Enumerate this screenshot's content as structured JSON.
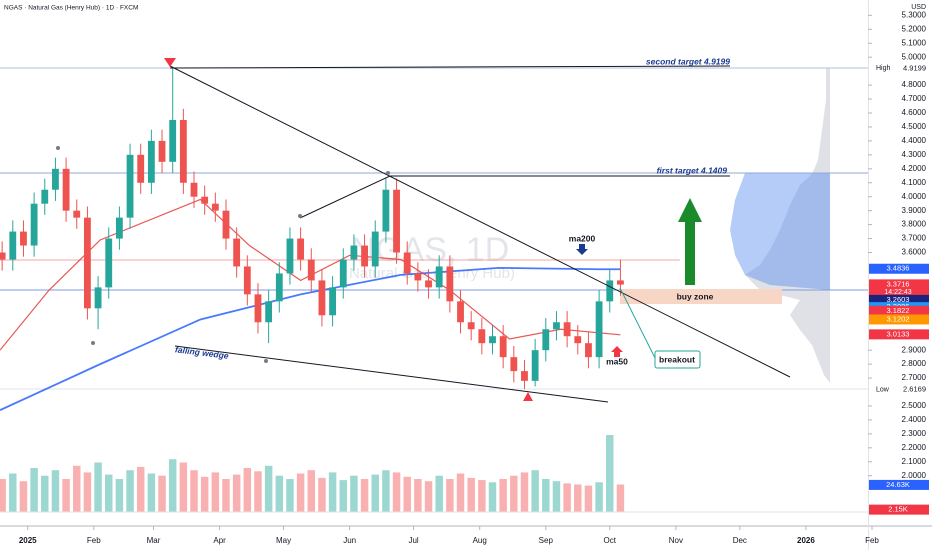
{
  "chart_data": {
    "type": "candlestick",
    "title": "NGAS · Natural Gas (Henry Hub) · 1D · FXCM",
    "currency": "USD",
    "watermark": "NGAS, 1D",
    "watermark_subtitle": "Natural Gas (Henry Hub)",
    "x": [
      -12,
      -7,
      -2,
      3,
      8,
      13,
      18,
      23,
      28,
      33,
      38,
      43,
      48,
      53,
      58,
      63,
      68,
      73,
      78,
      83,
      88,
      93,
      98,
      103,
      108,
      113,
      118,
      123,
      128,
      133,
      138,
      143,
      148,
      153,
      158,
      163,
      168,
      173,
      178,
      183,
      188,
      193,
      198,
      203,
      208,
      213,
      218,
      223,
      228,
      233,
      238,
      243,
      248,
      253,
      258,
      263,
      268,
      273,
      278
    ],
    "open": [
      3.6,
      3.55,
      3.75,
      3.65,
      3.95,
      4.05,
      4.2,
      3.9,
      3.85,
      3.2,
      3.35,
      3.7,
      3.85,
      4.3,
      4.1,
      4.4,
      4.25,
      4.55,
      4.1,
      4.0,
      3.95,
      3.9,
      3.7,
      3.5,
      3.3,
      3.1,
      3.25,
      3.45,
      3.7,
      3.55,
      3.4,
      3.15,
      3.35,
      3.55,
      3.65,
      3.5,
      3.75,
      4.05,
      3.6,
      3.45,
      3.4,
      3.35,
      3.5,
      3.25,
      3.1,
      3.05,
      2.95,
      3.0,
      2.85,
      2.75,
      2.68,
      2.9,
      3.05,
      3.1,
      3.0,
      2.95,
      2.85,
      3.25,
      3.4
    ],
    "high": [
      3.68,
      3.83,
      3.83,
      4.03,
      4.13,
      4.28,
      4.28,
      3.98,
      3.93,
      3.43,
      3.78,
      3.93,
      4.38,
      4.38,
      4.48,
      4.48,
      4.92,
      4.63,
      4.18,
      4.08,
      4.03,
      3.98,
      3.78,
      3.58,
      3.38,
      3.33,
      3.53,
      3.78,
      3.78,
      3.63,
      3.48,
      3.43,
      3.63,
      3.73,
      3.73,
      3.83,
      4.13,
      4.13,
      3.68,
      3.53,
      3.48,
      3.58,
      3.58,
      3.33,
      3.18,
      3.13,
      3.08,
      3.08,
      2.93,
      2.83,
      2.98,
      3.13,
      3.18,
      3.18,
      3.08,
      3.03,
      3.33,
      3.48,
      3.55
    ],
    "low": [
      3.47,
      3.47,
      3.57,
      3.57,
      3.87,
      3.97,
      3.82,
      3.77,
      3.12,
      3.05,
      3.27,
      3.62,
      3.77,
      4.02,
      4.02,
      4.17,
      4.17,
      4.02,
      3.92,
      3.87,
      3.82,
      3.62,
      3.42,
      3.22,
      3.02,
      2.95,
      3.17,
      3.37,
      3.47,
      3.32,
      3.07,
      3.07,
      3.27,
      3.47,
      3.42,
      3.42,
      3.67,
      3.52,
      3.37,
      3.32,
      3.27,
      3.27,
      3.17,
      3.02,
      2.97,
      2.87,
      2.87,
      2.77,
      2.67,
      2.62,
      2.64,
      2.82,
      2.97,
      2.92,
      2.87,
      2.77,
      2.77,
      3.17,
      3.29
    ],
    "close": [
      3.55,
      3.75,
      3.65,
      3.95,
      4.05,
      4.2,
      3.9,
      3.85,
      3.2,
      3.35,
      3.7,
      3.85,
      4.3,
      4.1,
      4.4,
      4.25,
      4.55,
      4.1,
      4.0,
      3.95,
      3.9,
      3.7,
      3.5,
      3.3,
      3.1,
      3.25,
      3.45,
      3.7,
      3.55,
      3.4,
      3.15,
      3.35,
      3.55,
      3.65,
      3.5,
      3.75,
      4.05,
      3.6,
      3.45,
      3.4,
      3.35,
      3.5,
      3.25,
      3.1,
      3.05,
      2.95,
      3.0,
      2.85,
      2.75,
      2.68,
      2.9,
      3.05,
      3.1,
      3.0,
      2.95,
      2.85,
      3.25,
      3.4,
      3.37
    ],
    "up_color": "#26a69a",
    "down_color": "#ef5350",
    "volume": [
      30,
      35,
      28,
      40,
      33,
      38,
      30,
      42,
      36,
      45,
      34,
      30,
      38,
      41,
      35,
      33,
      48,
      45,
      38,
      32,
      36,
      30,
      34,
      40,
      37,
      42,
      33,
      30,
      35,
      38,
      31,
      36,
      29,
      33,
      30,
      34,
      38,
      36,
      32,
      30,
      28,
      33,
      30,
      35,
      31,
      29,
      27,
      30,
      33,
      36,
      38,
      30,
      28,
      26,
      25,
      24,
      27,
      70,
      25
    ],
    "volume_ylim": [
      0,
      100
    ],
    "volume_tags": [
      {
        "value": 24.63,
        "label": "24.63K",
        "color": "#2962ff"
      },
      {
        "value": 2.15,
        "label": "2.15K",
        "color": "#f23645"
      }
    ],
    "xlim": [
      -13,
      396
    ],
    "xticks": [
      {
        "value": 0,
        "label": "2025"
      },
      {
        "value": 31,
        "label": "Feb"
      },
      {
        "value": 59,
        "label": "Mar"
      },
      {
        "value": 90,
        "label": "Apr"
      },
      {
        "value": 120,
        "label": "May"
      },
      {
        "value": 151,
        "label": "Jun"
      },
      {
        "value": 181,
        "label": "Jul"
      },
      {
        "value": 212,
        "label": "Aug"
      },
      {
        "value": 243,
        "label": "Sep"
      },
      {
        "value": 273,
        "label": "Oct"
      },
      {
        "value": 304,
        "label": "Nov"
      },
      {
        "value": 334,
        "label": "Dec"
      },
      {
        "value": 365,
        "label": "2026"
      },
      {
        "value": 396,
        "label": "Feb"
      }
    ],
    "ylim": [
      1.74,
      5.41
    ],
    "yticks": [
      {
        "value": 5.3,
        "label": "5.3000"
      },
      {
        "value": 5.2,
        "label": "5.2000"
      },
      {
        "value": 5.1,
        "label": "5.1000"
      },
      {
        "value": 5.0,
        "label": "5.0000"
      },
      {
        "value": 4.8,
        "label": "4.8000"
      },
      {
        "value": 4.7,
        "label": "4.7000"
      },
      {
        "value": 4.6,
        "label": "4.6000"
      },
      {
        "value": 4.5,
        "label": "4.5000"
      },
      {
        "value": 4.4,
        "label": "4.4000"
      },
      {
        "value": 4.3,
        "label": "4.3000"
      },
      {
        "value": 4.2,
        "label": "4.2000"
      },
      {
        "value": 4.1,
        "label": "4.1000"
      },
      {
        "value": 4.0,
        "label": "4.0000"
      },
      {
        "value": 3.9,
        "label": "3.9000"
      },
      {
        "value": 3.8,
        "label": "3.8000"
      },
      {
        "value": 3.7,
        "label": "3.7000"
      },
      {
        "value": 3.6,
        "label": "3.6000"
      },
      {
        "value": 2.9,
        "label": "2.9000"
      },
      {
        "value": 2.8,
        "label": "2.8000"
      },
      {
        "value": 2.7,
        "label": "2.7000"
      },
      {
        "value": 2.5,
        "label": "2.5000"
      },
      {
        "value": 2.4,
        "label": "2.4000"
      },
      {
        "value": 2.3,
        "label": "2.3000"
      },
      {
        "value": 2.2,
        "label": "2.2000"
      },
      {
        "value": 2.1,
        "label": "2.1000"
      },
      {
        "value": 2.0,
        "label": "2.0000"
      }
    ],
    "lines": [
      {
        "name": "ma200",
        "color": "#2962ff",
        "x": [
          -13,
          34,
          81,
          128,
          175,
          221,
          268,
          278
        ],
        "values": [
          2.47,
          2.8,
          3.12,
          3.3,
          3.44,
          3.49,
          3.48,
          3.48
        ]
      },
      {
        "name": "ma50",
        "color": "#e53935",
        "x": [
          -13,
          10,
          34,
          81,
          104,
          128,
          151,
          175,
          198,
          226,
          250,
          278
        ],
        "values": [
          2.9,
          3.33,
          3.69,
          3.98,
          3.65,
          3.4,
          3.58,
          3.55,
          3.33,
          2.98,
          3.05,
          3.01
        ]
      }
    ],
    "price_tags": [
      {
        "name": "High",
        "value": 4.9199,
        "label": "4.9199"
      },
      {
        "name": "Low",
        "value": 2.6169,
        "label": "2.6169"
      },
      {
        "value": 3.4836,
        "label": "3.4836",
        "color": "#2962ff"
      },
      {
        "value": 3.3716,
        "label": "3.3716",
        "color": "#f23645",
        "countdown": "14:22:43"
      },
      {
        "value": 3.2603,
        "label": "3.2603",
        "color": "#1a237e"
      },
      {
        "value": 3.2086,
        "label": "3.2086",
        "color": "#2196f3"
      },
      {
        "value": 3.1822,
        "label": "3.1822",
        "color": "#f23645"
      },
      {
        "value": 3.1202,
        "label": "3.1202",
        "color": "#ff9800"
      },
      {
        "value": 3.0133,
        "label": "3.0133",
        "color": "#f23645"
      }
    ],
    "annotations": {
      "second_target": "second target 4.9199",
      "first_target": "first target 4.1409",
      "buy_zone": "buy zone",
      "breakout": "breakout",
      "falling_wedge": "falling wedge"
    }
  }
}
